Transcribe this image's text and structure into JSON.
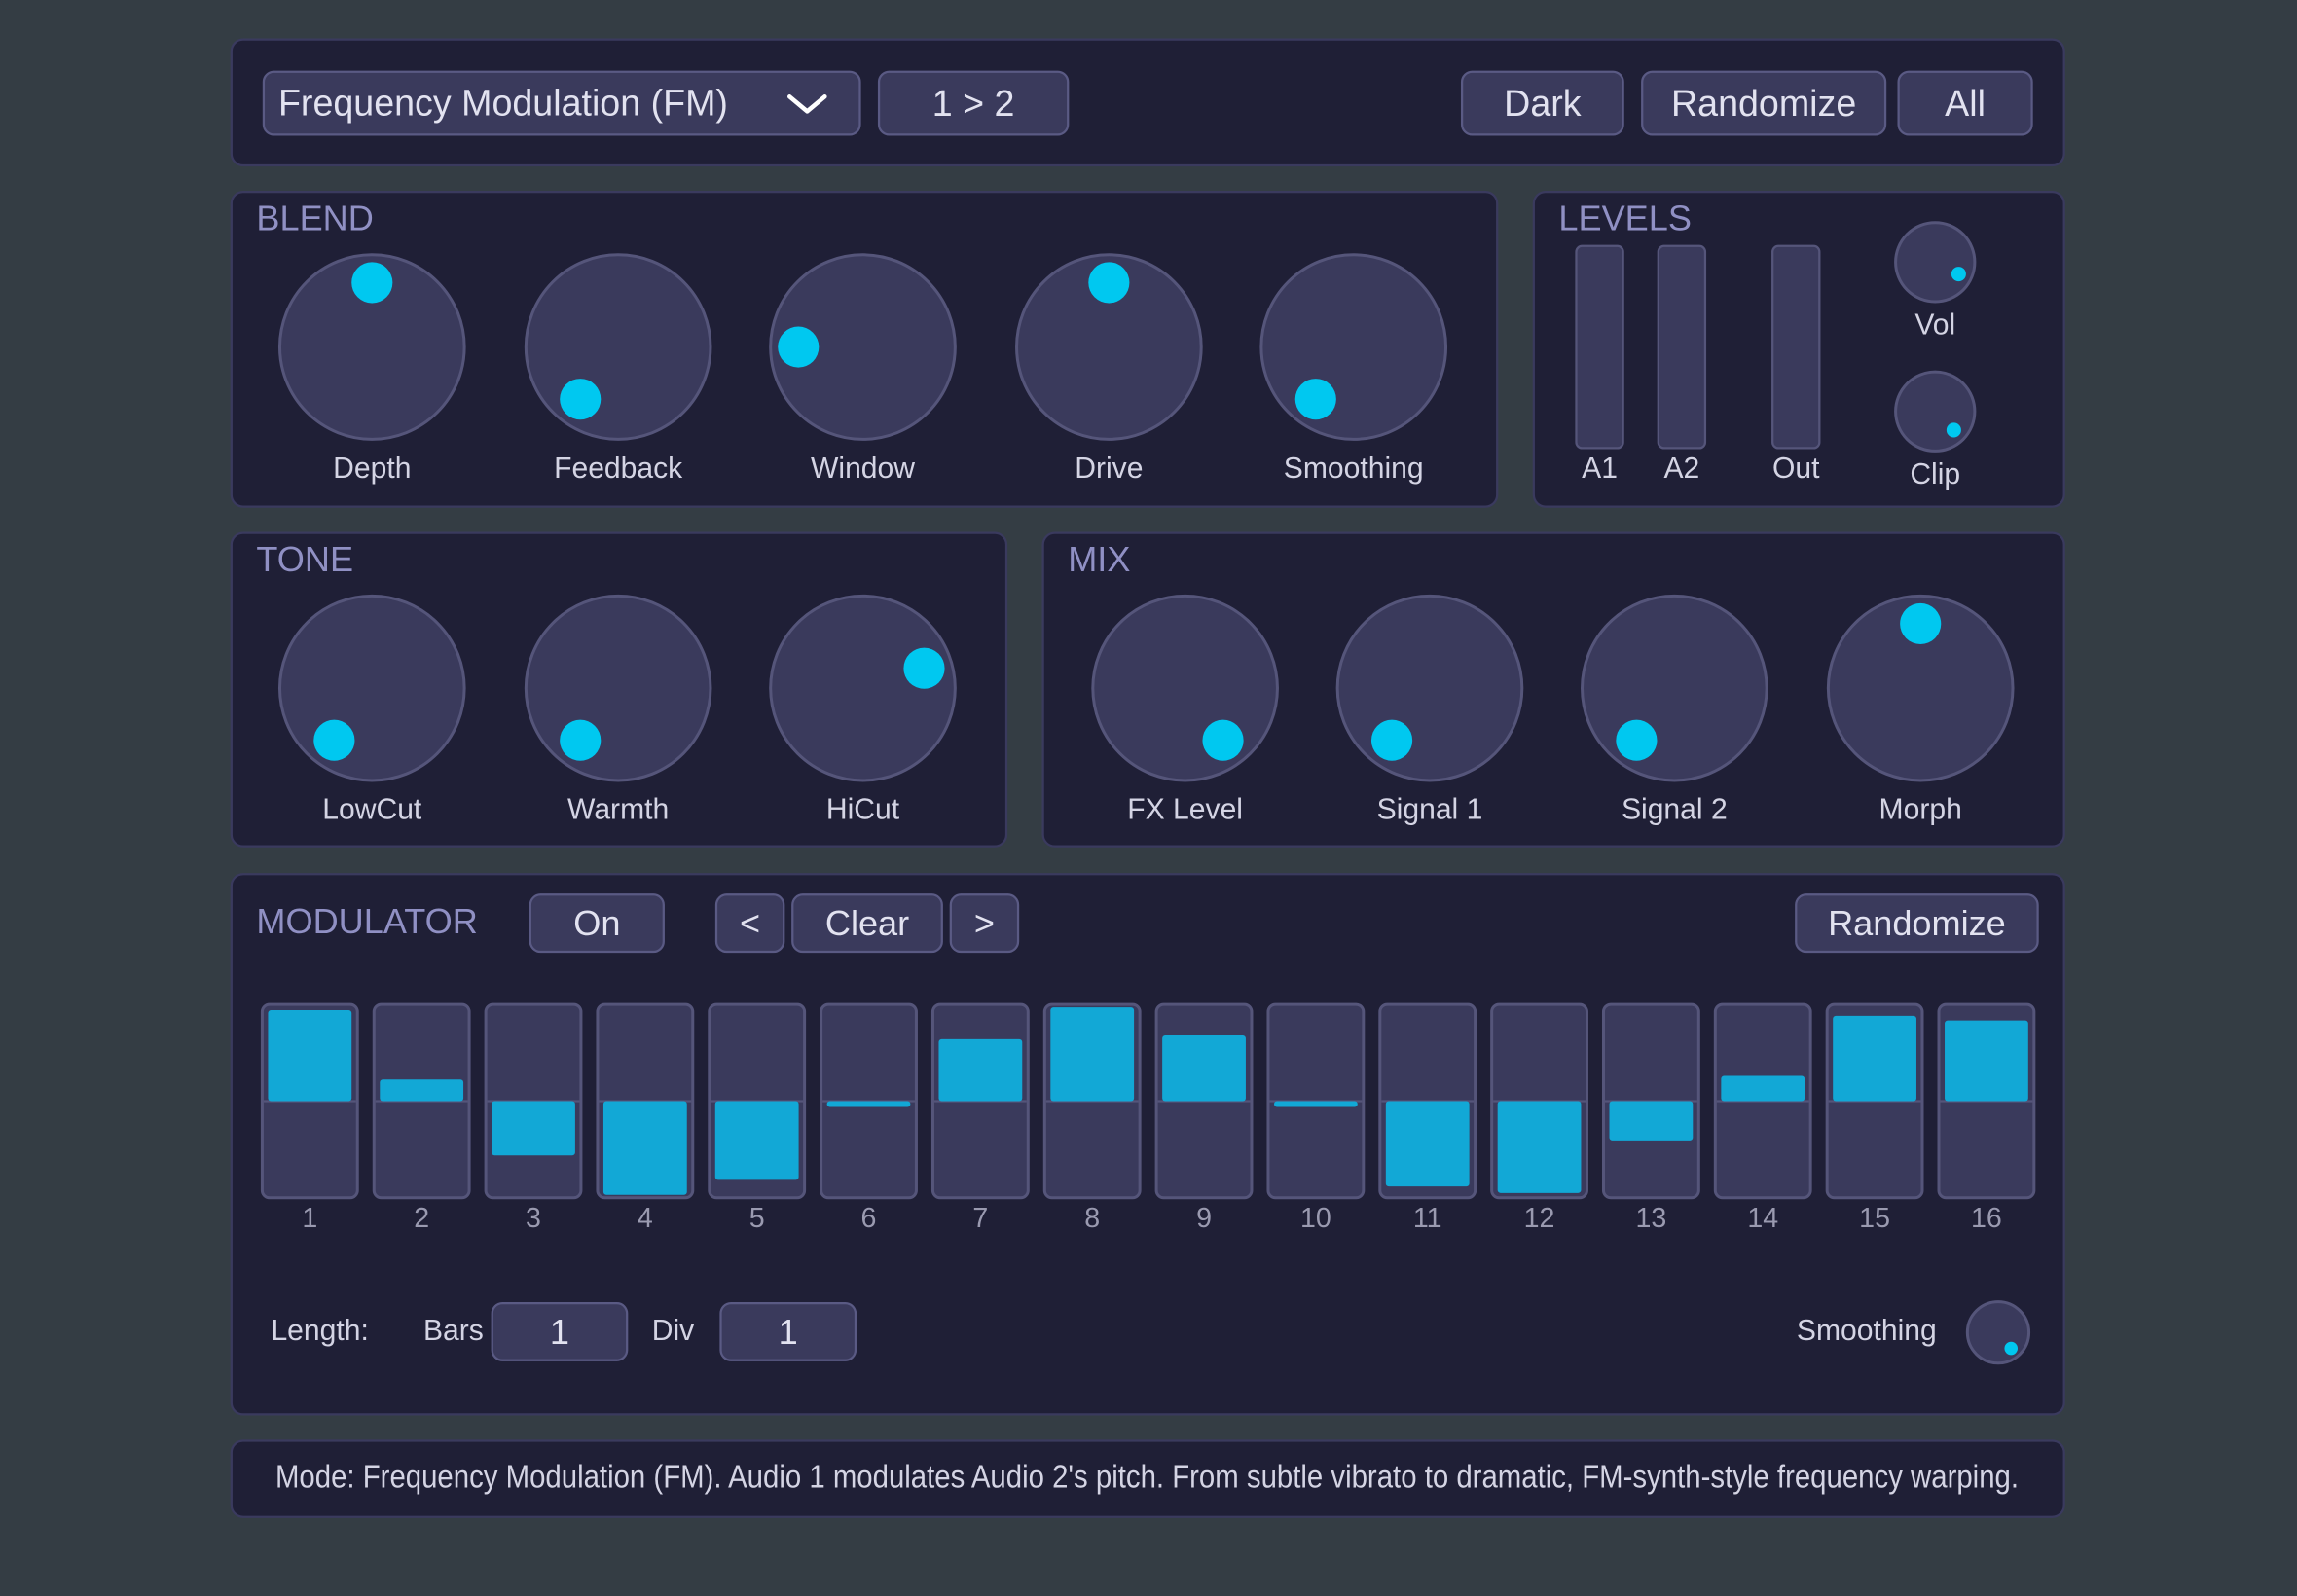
{
  "toolbar": {
    "mode": "Frequency Modulation (FM)",
    "routing": "1 > 2",
    "theme": "Dark",
    "randomize": "Randomize",
    "all": "All"
  },
  "blend": {
    "title": "BLEND",
    "knobs": [
      {
        "label": "Depth",
        "value": 0.5
      },
      {
        "label": "Feedback",
        "value": 0.02
      },
      {
        "label": "Window",
        "value": 0.2
      },
      {
        "label": "Drive",
        "value": 0.5
      },
      {
        "label": "Smoothing",
        "value": 0.02
      }
    ]
  },
  "levels": {
    "title": "LEVELS",
    "meters": [
      "A1",
      "A2",
      "Out"
    ],
    "knobs": [
      {
        "label": "Vol",
        "value": 0.89
      },
      {
        "label": "Clip",
        "value": 0.95
      }
    ]
  },
  "tone": {
    "title": "TONE",
    "knobs": [
      {
        "label": "LowCut",
        "value": 0.02
      },
      {
        "label": "Warmth",
        "value": 0.02
      },
      {
        "label": "HiCut",
        "value": 0.74
      }
    ]
  },
  "mix": {
    "title": "MIX",
    "knobs": [
      {
        "label": "FX Level",
        "value": 0.98
      },
      {
        "label": "Signal 1",
        "value": 0.02
      },
      {
        "label": "Signal 2",
        "value": 0.02
      },
      {
        "label": "Morph",
        "value": 0.5
      }
    ]
  },
  "modulator": {
    "title": "MODULATOR",
    "toggle": "On",
    "prev": "<",
    "clear": "Clear",
    "next": ">",
    "randomize": "Randomize",
    "steps": [
      {
        "label": "1",
        "value": 0.97
      },
      {
        "label": "2",
        "value": 0.23
      },
      {
        "label": "3",
        "value": -0.58
      },
      {
        "label": "4",
        "value": -1.0
      },
      {
        "label": "5",
        "value": -0.84
      },
      {
        "label": "6",
        "value": -0.05
      },
      {
        "label": "7",
        "value": 0.66
      },
      {
        "label": "8",
        "value": 1.0
      },
      {
        "label": "9",
        "value": 0.7
      },
      {
        "label": "10",
        "value": -0.05
      },
      {
        "label": "11",
        "value": -0.91
      },
      {
        "label": "12",
        "value": -0.98
      },
      {
        "label": "13",
        "value": -0.42
      },
      {
        "label": "14",
        "value": 0.27
      },
      {
        "label": "15",
        "value": 0.91
      },
      {
        "label": "16",
        "value": 0.86
      }
    ],
    "length_label": "Length:",
    "bars_label": "Bars",
    "bars": 1,
    "div_label": "Div",
    "div": 1,
    "smoothing_label": "Smoothing",
    "smoothing": 0.97
  },
  "status": "Mode: Frequency Modulation (FM). Audio 1 modulates Audio 2's pitch. From subtle vibrato to dramatic, FM-synth-style frequency warping."
}
